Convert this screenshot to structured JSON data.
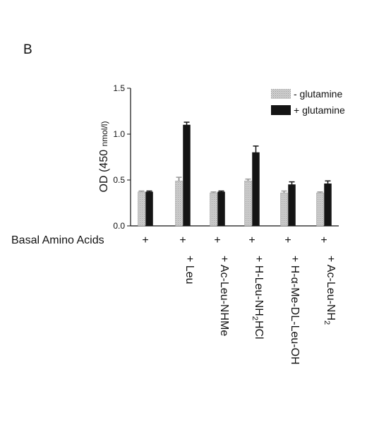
{
  "panel_label": "B",
  "colors": {
    "minus_glutamine": "#c4c4c4",
    "plus_glutamine": "#141414",
    "axis": "#111111"
  },
  "chart_data": {
    "type": "bar",
    "title": "",
    "ylabel": "OD (450 nmol/l)",
    "ylabel_main": "OD (450",
    "ylabel_sub": "nmol/l)",
    "ylim": [
      0,
      1.5
    ],
    "yticks": [
      "0.0",
      "0.5",
      "1.0",
      "1.5"
    ],
    "ytick_values": [
      0,
      0.5,
      1.0,
      1.5
    ],
    "row_label": "Basal Amino Acids",
    "basal_marks": [
      "+",
      "+",
      "+",
      "+",
      "+",
      "+"
    ],
    "categories": [
      {
        "plus": "",
        "text": "",
        "sub": "",
        "after": ""
      },
      {
        "plus": "+",
        "text": "Leu",
        "sub": "",
        "after": ""
      },
      {
        "plus": "+",
        "text": "Ac-Leu-NHMe",
        "sub": "",
        "after": ""
      },
      {
        "plus": "+",
        "text": "H-Leu-NH",
        "sub": "2",
        "after": "HCl"
      },
      {
        "plus": "+",
        "text": "H-α-Me-DL-Leu-OH",
        "sub": "",
        "after": ""
      },
      {
        "plus": "+",
        "text": "Ac-Leu-NH",
        "sub": "2",
        "after": ""
      }
    ],
    "legend": [
      "-  glutamine",
      "+ glutamine"
    ],
    "legend_position": "top-right",
    "series": [
      {
        "name": "-  glutamine",
        "values": [
          0.37,
          0.49,
          0.36,
          0.49,
          0.36,
          0.36
        ],
        "errors": [
          0.01,
          0.04,
          0.01,
          0.02,
          0.02,
          0.01
        ]
      },
      {
        "name": "+ glutamine",
        "values": [
          0.37,
          1.1,
          0.37,
          0.8,
          0.45,
          0.46
        ],
        "errors": [
          0.01,
          0.03,
          0.01,
          0.07,
          0.03,
          0.03
        ]
      }
    ]
  }
}
